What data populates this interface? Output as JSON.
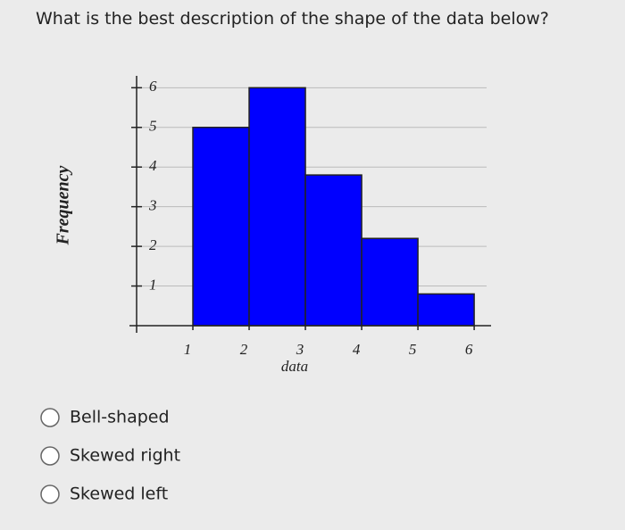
{
  "question": "What is the best description of the shape of the data below?",
  "chart_data": {
    "type": "histogram",
    "xlabel": "data",
    "ylabel": "Frequency",
    "bins": [
      1,
      2,
      3,
      4,
      5,
      6
    ],
    "counts": [
      5,
      6,
      3.8,
      2.2,
      0.8
    ],
    "color": "#0000ff",
    "xlim": [
      0,
      6.3
    ],
    "ylim": [
      0,
      6.3
    ],
    "xticks": [
      1,
      2,
      3,
      4,
      5,
      6
    ],
    "yticks": [
      1,
      2,
      3,
      4,
      5,
      6
    ],
    "grid": true
  },
  "options": [
    "Bell-shaped",
    "Skewed right",
    "Skewed left"
  ]
}
